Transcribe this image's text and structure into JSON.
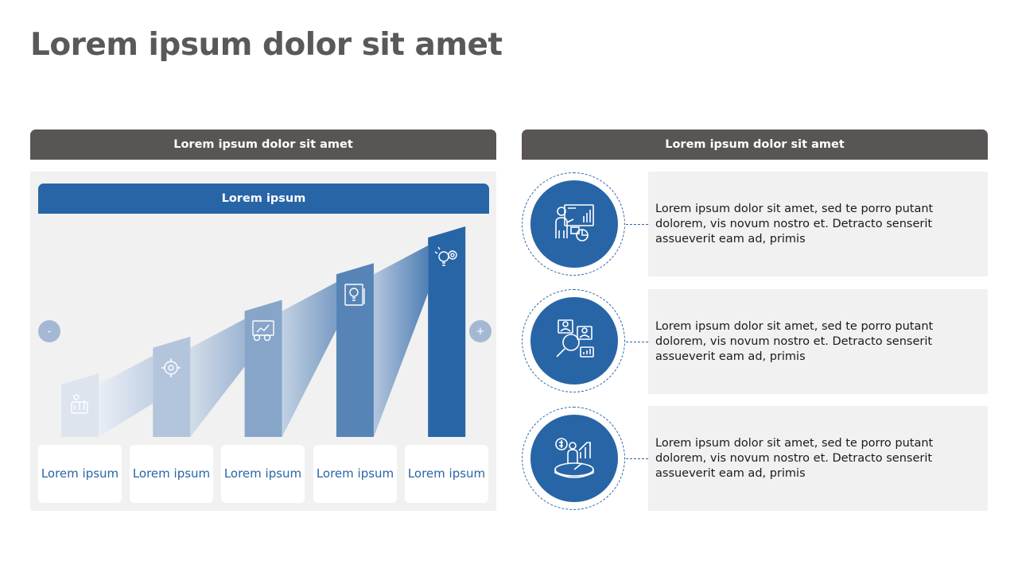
{
  "title": "Lorem ipsum dolor sit amet",
  "left_panel": {
    "header": "Lorem ipsum dolor sit amet",
    "subheader": "Lorem ipsum",
    "minus_label": "-",
    "plus_label": "+",
    "steps": [
      {
        "label": "Lorem ipsum",
        "icon": "growth-puzzle-icon",
        "level": 1,
        "color": "#dde4ee"
      },
      {
        "label": "Lorem ipsum",
        "icon": "idea-gear-icon",
        "level": 2,
        "color": "#b3c5dc"
      },
      {
        "label": "Lorem ipsum",
        "icon": "chart-gears-icon",
        "level": 3,
        "color": "#86a5c9"
      },
      {
        "label": "Lorem ipsum",
        "icon": "idea-document-icon",
        "level": 4,
        "color": "#5784b6"
      },
      {
        "label": "Lorem ipsum",
        "icon": "lightbulb-gear-icon",
        "level": 5,
        "color": "#2865a6"
      }
    ]
  },
  "right_panel": {
    "header": "Lorem ipsum dolor sit amet",
    "items": [
      {
        "icon": "presentation-chart-icon",
        "text": "Lorem ipsum dolor sit amet, sed te porro putant dolorem, vis novum nostro et. Detracto senserit assueverit eam ad, primis"
      },
      {
        "icon": "team-search-icon",
        "text": "Lorem ipsum dolor sit amet, sed te porro putant dolorem, vis novum nostro et. Detracto senserit assueverit eam ad, primis"
      },
      {
        "icon": "financial-growth-icon",
        "text": "Lorem ipsum dolor sit amet, sed te porro putant dolorem, vis novum nostro et. Detracto senserit assueverit eam ad, primis"
      }
    ]
  },
  "colors": {
    "primary": "#2865a6",
    "dark_header": "#595554",
    "panel_bg": "#f1f1f1",
    "title_text": "#595959"
  }
}
